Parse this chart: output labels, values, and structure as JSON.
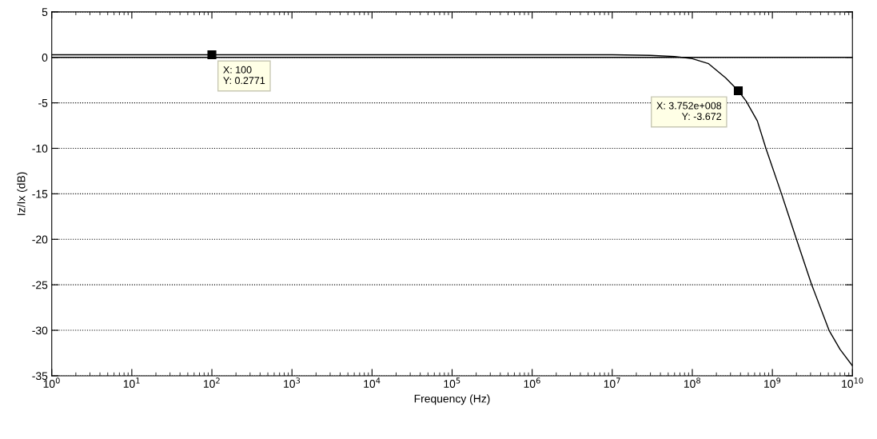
{
  "chart_data": {
    "type": "line",
    "xlabel": "Frequency (Hz)",
    "ylabel": "Iz/Ix (dB)",
    "log": "x",
    "x": [
      1,
      10,
      100,
      1000,
      10000,
      100000,
      1000000,
      10000000,
      30000000,
      60000000,
      100000000,
      160000000,
      260000000,
      375200000,
      470000000,
      650000000,
      830000000,
      1300000000,
      2000000000,
      3100000000,
      5100000000,
      7000000000,
      10000000000
    ],
    "series": [
      {
        "color": "#000000",
        "values": [
          0.28,
          0.28,
          0.28,
          0.28,
          0.28,
          0.28,
          0.28,
          0.28,
          0.22,
          0.1,
          -0.14,
          -0.7,
          -2.25,
          -3.67,
          -4.8,
          -7.0,
          -10.0,
          -15.0,
          -20.0,
          -25.0,
          -30.0,
          -32.1,
          -33.9
        ]
      }
    ],
    "xlim": [
      1,
      10000000000
    ],
    "xticks": [
      {
        "value": 1,
        "label": "10$^{0}$"
      },
      {
        "value": 10,
        "label": "10$^{1}$"
      },
      {
        "value": 100,
        "label": "10$^{2}$"
      },
      {
        "value": 1000,
        "label": "10$^{3}$"
      },
      {
        "value": 10000,
        "label": "10$^{4}$"
      },
      {
        "value": 100000,
        "label": "10$^{5}$"
      },
      {
        "value": 1000000,
        "label": "10$^{6}$"
      },
      {
        "value": 10000000,
        "label": "10$^{7}$"
      },
      {
        "value": 100000000,
        "label": "10$^{8}$"
      },
      {
        "value": 1000000000,
        "label": "10$^{9}$"
      },
      {
        "value": 10000000000,
        "label": "10$^{10}$"
      }
    ],
    "ylim": [
      -35,
      5
    ],
    "yticks": [
      -35,
      -30,
      -25,
      -20,
      -15,
      -10,
      -5,
      0,
      5
    ],
    "grid": "y",
    "line_style": "solid",
    "marker": "none",
    "ref_lines": [
      {
        "axis": "y",
        "value": 0,
        "color": "#000000",
        "line_style": "solid"
      }
    ],
    "annotations": [
      {
        "text": "X: 100\nY: 0.2771",
        "x": 100,
        "y": 0.2771
      },
      {
        "text": "X: 3.752e+008\nY: -3.672",
        "x": 375200000,
        "y": -3.672
      }
    ]
  }
}
